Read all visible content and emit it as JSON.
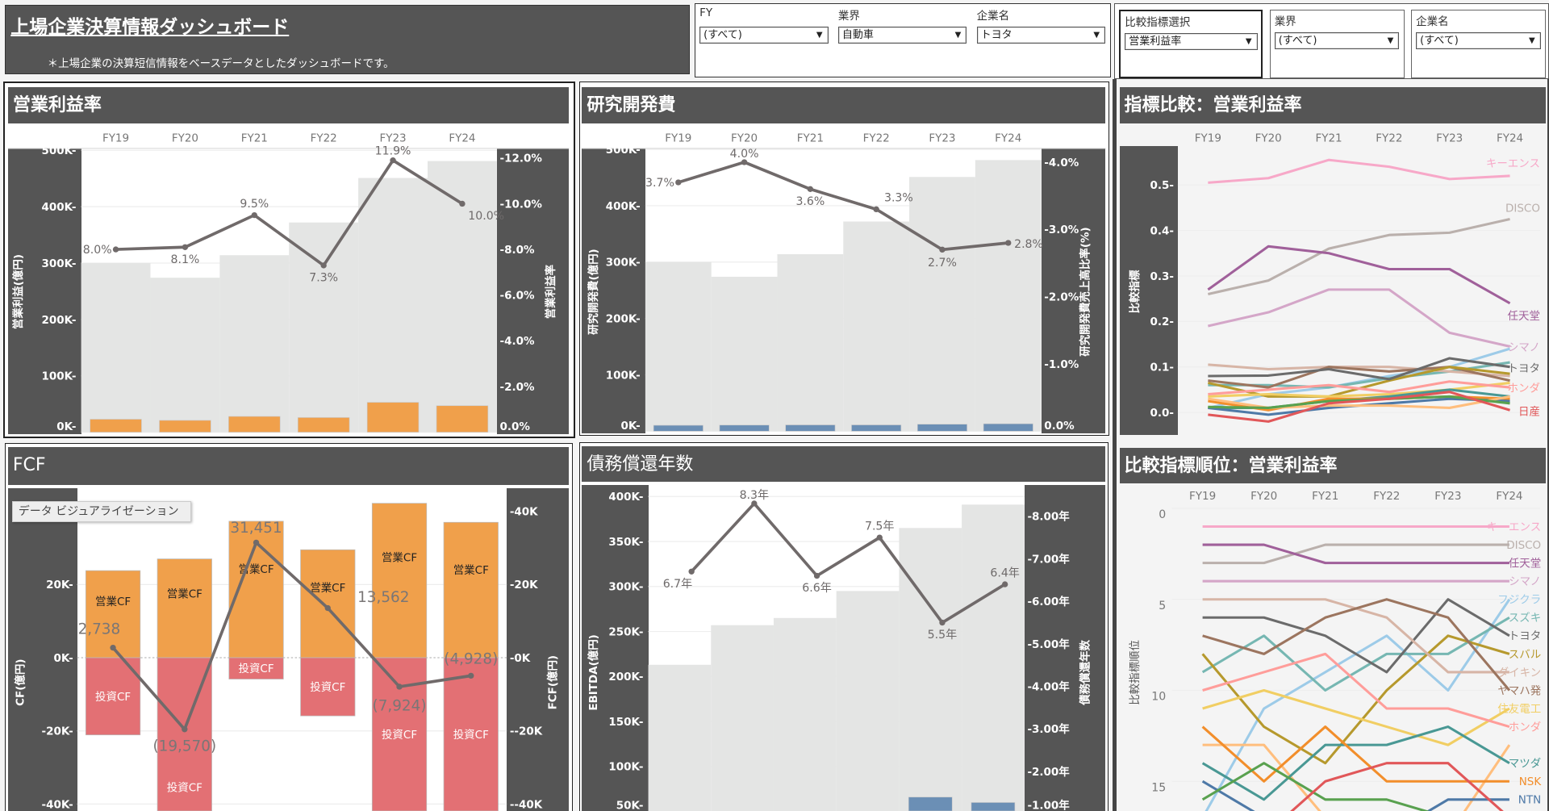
{
  "header": {
    "title": "上場企業決算情報ダッシュボード",
    "subtitle": "＊上場企業の決算短信情報をベースデータとしたダッシュボードです。"
  },
  "filters": [
    {
      "label": "FY",
      "value": "(すべて)"
    },
    {
      "label": "業界",
      "value": "自動車"
    },
    {
      "label": "企業名",
      "value": "トヨタ"
    }
  ],
  "compare_filters": [
    {
      "label": "比較指標選択",
      "value": "営業利益率"
    },
    {
      "label": "業界",
      "value": "(すべて)"
    },
    {
      "label": "企業名",
      "value": "(すべて)"
    }
  ],
  "tooltip": "データ ビジュアライゼーション",
  "dropdown_icon": "caret-down-icon",
  "colors": {
    "panel_dark": "#555555",
    "background_bar": "#e4e5e4",
    "profit_bar": "#f0a04b",
    "rd_bar": "#6b8fb5",
    "invest_bar": "#e37074",
    "line": "#706a6a"
  },
  "chart_data": [
    {
      "id": "op_margin",
      "title": "営業利益率",
      "type": "bar+line",
      "categories": [
        "FY19",
        "FY20",
        "FY21",
        "FY22",
        "FY23",
        "FY24"
      ],
      "background_bars": [
        300000,
        274000,
        314000,
        372000,
        451000,
        481000
      ],
      "bars": [
        23000,
        21000,
        28000,
        26000,
        53000,
        47000
      ],
      "line": [
        8.0,
        8.1,
        9.5,
        7.3,
        11.9,
        10.0
      ],
      "line_labels": [
        "8.0%",
        "8.1%",
        "9.5%",
        "7.3%",
        "11.9%",
        "10.0%"
      ],
      "y_left": {
        "label": "営業利益(億円)",
        "range": [
          0,
          500000
        ],
        "ticks": [
          [
            0,
            "0K"
          ],
          [
            100000,
            "100K"
          ],
          [
            200000,
            "200K"
          ],
          [
            300000,
            "300K"
          ],
          [
            400000,
            "400K"
          ],
          [
            500000,
            "500K"
          ]
        ]
      },
      "y_right": {
        "label": "営業利益率",
        "range": [
          0,
          12
        ],
        "ticks": [
          [
            0,
            "0.0%"
          ],
          [
            2,
            "-2.0%"
          ],
          [
            4,
            "-4.0%"
          ],
          [
            6,
            "-6.0%"
          ],
          [
            8,
            "-8.0%"
          ],
          [
            10,
            "-10.0%"
          ],
          [
            12,
            "-12.0%"
          ]
        ]
      }
    },
    {
      "id": "rd",
      "title": "研究開発費",
      "type": "bar+line",
      "categories": [
        "FY19",
        "FY20",
        "FY21",
        "FY22",
        "FY23",
        "FY24"
      ],
      "background_bars": [
        300000,
        274000,
        314000,
        372000,
        451000,
        481000
      ],
      "bars": [
        10500,
        10900,
        11200,
        11200,
        12400,
        13200
      ],
      "line": [
        3.7,
        4.0,
        3.6,
        3.3,
        2.7,
        2.8
      ],
      "line_labels": [
        "3.7%",
        "4.0%",
        "3.6%",
        "3.3%",
        "2.7%",
        "2.8%"
      ],
      "y_left": {
        "label": "研究開発費(億円)",
        "range": [
          0,
          500000
        ],
        "ticks": [
          [
            0,
            "0K"
          ],
          [
            100000,
            "100K"
          ],
          [
            200000,
            "200K"
          ],
          [
            300000,
            "300K"
          ],
          [
            400000,
            "400K"
          ],
          [
            500000,
            "500K"
          ]
        ]
      },
      "y_right": {
        "label": "研究開発費売上高比率(%)",
        "range": [
          0,
          4
        ],
        "ticks": [
          [
            0,
            "0.0%"
          ],
          [
            1,
            "-1.0%"
          ],
          [
            2,
            "-2.0%"
          ],
          [
            3,
            "-3.0%"
          ],
          [
            4,
            "-4.0%"
          ]
        ]
      }
    },
    {
      "id": "fcf",
      "title": "FCF",
      "type": "stacked-bar+line",
      "categories": [
        "FY19",
        "FY20",
        "FY21",
        "FY22",
        "FY23",
        "FY24"
      ],
      "series": [
        {
          "name": "営業CF",
          "values": [
            23800,
            27000,
            37300,
            29500,
            42200,
            37000
          ]
        },
        {
          "name": "投資CF",
          "values": [
            -21100,
            -46600,
            -5850,
            -15900,
            -50100,
            -41900
          ]
        }
      ],
      "line": [
        2738,
        -19570,
        31451,
        13562,
        -7924,
        -4928
      ],
      "line_labels": [
        "2,738",
        "(19,570)",
        "31,451",
        "13,562",
        "(7,924)",
        "(4,928)"
      ],
      "y_left": {
        "label": "CF(億円)",
        "ticks": [
          [
            -40000,
            "-40K"
          ],
          [
            -20000,
            "-20K"
          ],
          [
            0,
            "0K"
          ],
          [
            20000,
            "20K"
          ]
        ]
      },
      "y_right": {
        "label": "FCF(億円)",
        "ticks": [
          [
            -40000,
            "--40K"
          ],
          [
            -20000,
            "--20K"
          ],
          [
            0,
            "-0K"
          ],
          [
            20000,
            "-20K"
          ],
          [
            40000,
            "-40K"
          ]
        ]
      }
    },
    {
      "id": "debt_years",
      "title": "債務償還年数",
      "type": "bar+line",
      "categories": [
        "FY19",
        "FY20",
        "FY21",
        "FY22",
        "FY23",
        "FY24"
      ],
      "background_bars": [
        213000,
        257000,
        265000,
        295000,
        365000,
        391000
      ],
      "bars": [
        null,
        null,
        null,
        null,
        66000,
        60000
      ],
      "line": [
        6.7,
        8.3,
        6.6,
        7.5,
        5.5,
        6.4
      ],
      "line_labels": [
        "6.7年",
        "8.3年",
        "6.6年",
        "7.5年",
        "5.5年",
        "6.4年"
      ],
      "y_left": {
        "label": "EBITDA(億円)",
        "ticks": [
          [
            50000,
            "50K"
          ],
          [
            100000,
            "100K"
          ],
          [
            150000,
            "150K"
          ],
          [
            200000,
            "200K"
          ],
          [
            250000,
            "250K"
          ],
          [
            300000,
            "300K"
          ],
          [
            350000,
            "350K"
          ],
          [
            400000,
            "400K"
          ]
        ]
      },
      "y_right": {
        "label": "債務償還年数",
        "ticks": [
          [
            1,
            "-1.00年"
          ],
          [
            2,
            "-2.00年"
          ],
          [
            3,
            "-3.00年"
          ],
          [
            4,
            "-4.00年"
          ],
          [
            5,
            "-5.00年"
          ],
          [
            6,
            "-6.00年"
          ],
          [
            7,
            "-7.00年"
          ],
          [
            8,
            "-8.00年"
          ]
        ]
      }
    },
    {
      "id": "compare",
      "title": "指標比較：営業利益率",
      "type": "line",
      "categories": [
        "FY19",
        "FY20",
        "FY21",
        "FY22",
        "FY23",
        "FY24"
      ],
      "y": {
        "label": "比較指標",
        "ticks": [
          [
            0,
            "0.0"
          ],
          [
            0.1,
            "0.1"
          ],
          [
            0.2,
            "0.2"
          ],
          [
            0.3,
            "0.3"
          ],
          [
            0.4,
            "0.4"
          ],
          [
            0.5,
            "0.5"
          ]
        ]
      },
      "series": [
        {
          "name": "キーエンス",
          "labeled": true,
          "color": "#f7a8c8",
          "values": [
            0.505,
            0.515,
            0.555,
            0.54,
            0.513,
            0.52
          ]
        },
        {
          "name": "DISCO",
          "labeled": true,
          "color": "#bab0ac",
          "values": [
            0.26,
            0.29,
            0.36,
            0.39,
            0.395,
            0.425
          ]
        },
        {
          "name": "任天堂",
          "labeled": true,
          "color": "#a0609a",
          "values": [
            0.27,
            0.365,
            0.35,
            0.315,
            0.315,
            0.24
          ]
        },
        {
          "name": "シマノ",
          "labeled": true,
          "color": "#d4a6c8",
          "values": [
            0.19,
            0.22,
            0.27,
            0.27,
            0.175,
            0.145
          ]
        },
        {
          "name": "フジクラ",
          "labeled": false,
          "color": "#9dcbe8",
          "values": [
            0.01,
            0.04,
            0.055,
            0.08,
            0.1,
            0.14
          ]
        },
        {
          "name": "スズキ",
          "labeled": false,
          "color": "#76b7b2",
          "values": [
            0.06,
            0.06,
            0.055,
            0.075,
            0.09,
            0.11
          ]
        },
        {
          "name": "ダイキン",
          "labeled": false,
          "color": "#d7b5a6",
          "values": [
            0.105,
            0.095,
            0.1,
            0.1,
            0.09,
            0.08
          ]
        },
        {
          "name": "ヤマハ発",
          "labeled": false,
          "color": "#9c755f",
          "values": [
            0.07,
            0.055,
            0.1,
            0.09,
            0.1,
            0.07
          ]
        },
        {
          "name": "スバル",
          "labeled": false,
          "color": "#b6992d",
          "values": [
            0.065,
            0.035,
            0.035,
            0.07,
            0.1,
            0.085
          ]
        },
        {
          "name": "住友電工",
          "labeled": false,
          "color": "#f1ce63",
          "values": [
            0.035,
            0.04,
            0.035,
            0.04,
            0.05,
            0.065
          ]
        },
        {
          "name": "トヨタ",
          "labeled": true,
          "color": "#6b6b6b",
          "values": [
            0.08,
            0.081,
            0.095,
            0.073,
            0.119,
            0.1
          ]
        },
        {
          "name": "ホンダ",
          "labeled": true,
          "color": "#ff9d9a",
          "values": [
            0.04,
            0.05,
            0.06,
            0.045,
            0.068,
            0.055
          ]
        },
        {
          "name": "マツダ",
          "labeled": false,
          "color": "#499894",
          "values": [
            0.01,
            0.01,
            0.025,
            0.035,
            0.05,
            0.035
          ]
        },
        {
          "name": "NSK",
          "labeled": false,
          "color": "#f28e2b",
          "values": [
            0.025,
            0.005,
            0.03,
            0.03,
            0.035,
            0.03
          ]
        },
        {
          "name": "NTN",
          "labeled": false,
          "color": "#4e79a7",
          "values": [
            0.01,
            -0.005,
            0.01,
            0.02,
            0.03,
            0.025
          ]
        },
        {
          "name": "",
          "labeled": false,
          "color": "#ffbe7d",
          "values": [
            0.03,
            0.01,
            0.015,
            0.015,
            0.01,
            0.035
          ]
        },
        {
          "name": "",
          "labeled": false,
          "color": "#59a14f",
          "values": [
            0.012,
            0.01,
            0.025,
            0.03,
            0.035,
            0.02
          ]
        },
        {
          "name": "日産",
          "labeled": true,
          "color": "#e15759",
          "values": [
            -0.005,
            -0.02,
            0.02,
            0.03,
            0.045,
            0.005
          ]
        }
      ]
    },
    {
      "id": "rank",
      "title": "比較指標順位：営業利益率",
      "type": "line",
      "categories": [
        "FY19",
        "FY20",
        "FY21",
        "FY22",
        "FY23",
        "FY24"
      ],
      "y": {
        "label": "比較指標順位",
        "reversed": true,
        "ticks": [
          [
            0,
            "0"
          ],
          [
            5,
            "5"
          ],
          [
            10,
            "10"
          ],
          [
            15,
            "15"
          ]
        ]
      },
      "series": [
        {
          "name": "キーエンス",
          "labeled": true,
          "color": "#f7a8c8",
          "values": [
            1,
            1,
            1,
            1,
            1,
            1
          ]
        },
        {
          "name": "DISCO",
          "labeled": true,
          "color": "#bab0ac",
          "values": [
            3,
            3,
            2,
            2,
            2,
            2
          ]
        },
        {
          "name": "任天堂",
          "labeled": true,
          "color": "#a0609a",
          "values": [
            2,
            2,
            3,
            3,
            3,
            3
          ]
        },
        {
          "name": "シマノ",
          "labeled": true,
          "color": "#d4a6c8",
          "values": [
            4,
            4,
            4,
            4,
            4,
            4
          ]
        },
        {
          "name": "フジクラ",
          "labeled": true,
          "color": "#9dcbe8",
          "values": [
            17,
            11,
            9,
            7,
            10,
            5
          ]
        },
        {
          "name": "スズキ",
          "labeled": true,
          "color": "#76b7b2",
          "values": [
            9,
            7,
            10,
            8,
            8,
            6
          ]
        },
        {
          "name": "トヨタ",
          "labeled": true,
          "color": "#6b6b6b",
          "values": [
            6,
            6,
            7,
            9,
            5,
            7
          ]
        },
        {
          "name": "スバル",
          "labeled": true,
          "color": "#b6992d",
          "values": [
            8,
            12,
            14,
            10,
            7,
            8
          ]
        },
        {
          "name": "ダイキン",
          "labeled": true,
          "color": "#d7b5a6",
          "values": [
            5,
            5,
            5,
            6,
            9,
            9
          ]
        },
        {
          "name": "ヤマハ発",
          "labeled": true,
          "color": "#9c755f",
          "values": [
            7,
            8,
            6,
            5,
            6,
            10
          ]
        },
        {
          "name": "住友電工",
          "labeled": true,
          "color": "#f1ce63",
          "values": [
            11,
            10,
            11,
            12,
            13,
            11
          ]
        },
        {
          "name": "ホンダ",
          "labeled": true,
          "color": "#ff9d9a",
          "values": [
            10,
            9,
            8,
            11,
            11,
            12
          ]
        },
        {
          "name": "",
          "labeled": false,
          "color": "#ffbe7d",
          "values": [
            13,
            13,
            17,
            18,
            18,
            13
          ]
        },
        {
          "name": "マツダ",
          "labeled": true,
          "color": "#499894",
          "values": [
            14,
            16,
            13,
            13,
            12,
            14
          ]
        },
        {
          "name": "NSK",
          "labeled": true,
          "color": "#f28e2b",
          "values": [
            12,
            15,
            12,
            15,
            15,
            15
          ]
        },
        {
          "name": "NTN",
          "labeled": true,
          "color": "#4e79a7",
          "values": [
            15,
            17,
            18,
            18,
            16,
            16
          ]
        },
        {
          "name": "",
          "labeled": false,
          "color": "#59a14f",
          "values": [
            16,
            14,
            16,
            16,
            17,
            17
          ]
        },
        {
          "name": "日産",
          "labeled": false,
          "color": "#e15759",
          "values": [
            18,
            18,
            15,
            14,
            14,
            17
          ]
        }
      ]
    }
  ]
}
